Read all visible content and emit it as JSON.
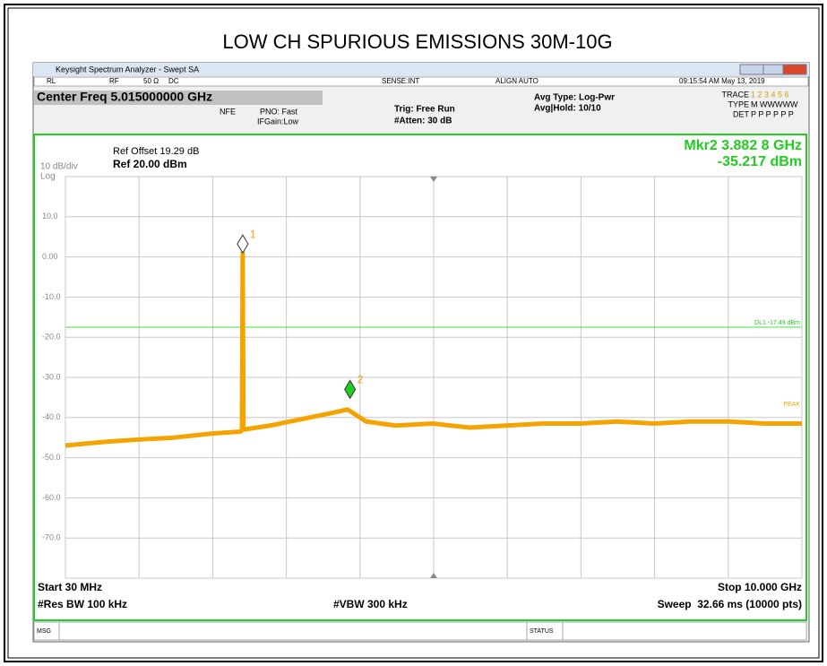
{
  "title": "LOW CH SPURIOUS EMISSIONS 30M-10G",
  "window": {
    "title": "Keysight Spectrum Analyzer - Swept SA"
  },
  "status_row": [
    "RL",
    "RF",
    "50 Ω",
    "DC",
    "SENSE:INT",
    "ALIGN AUTO",
    "09:15:54 AM May 13, 2019"
  ],
  "settings": {
    "center": "Center Freq 5.015000000 GHz",
    "nfe": "NFE",
    "pno": "PNO: Fast",
    "ifgain": "IFGain:Low",
    "trig": "Trig: Free Run",
    "atten": "#Atten: 30 dB",
    "avg_type": "Avg Type: Log-Pwr",
    "avg_hold": "Avg|Hold: 10/10"
  },
  "trace_panel": {
    "trace": "TRACE",
    "trace_nums": "1 2 3 4 5 6",
    "type": "TYPE",
    "type_val": "M WWWWW",
    "det": "DET",
    "det_val": "P P P P P P"
  },
  "ref_offset": "Ref Offset 19.29 dB",
  "scale": "10 dB/div",
  "log": "Log",
  "ref_level": "Ref 20.00 dBm",
  "marker_readout": {
    "freq": "Mkr2 3.882 8 GHz",
    "level": "-35.217 dBm"
  },
  "display_line": {
    "label": "DL1 -17.49 dBm",
    "value": -17.49
  },
  "peak_label": "PEAK",
  "axis": {
    "xlim": [
      0.03,
      10
    ],
    "ylim": [
      -80,
      20
    ],
    "xgrid": [
      0.03,
      1.027,
      2.024,
      3.021,
      4.018,
      5.015,
      6.012,
      7.009,
      8.006,
      9.003,
      10
    ],
    "yticks": [
      {
        "value": 20,
        "label": ""
      },
      {
        "value": 10,
        "label": "10.0"
      },
      {
        "value": 0,
        "label": "0.00"
      },
      {
        "value": -10,
        "label": "-10.0"
      },
      {
        "value": -20,
        "label": "-20.0"
      },
      {
        "value": -30,
        "label": "-30.0"
      },
      {
        "value": -40,
        "label": "-40.0"
      },
      {
        "value": -50,
        "label": "-50.0"
      },
      {
        "value": -60,
        "label": "-60.0"
      },
      {
        "value": -70,
        "label": "-70.0"
      },
      {
        "value": -80,
        "label": ""
      }
    ]
  },
  "trace": {
    "x": [
      0.03,
      0.3,
      0.6,
      1.0,
      1.5,
      2.0,
      2.4,
      2.42,
      2.43,
      2.44,
      2.8,
      3.2,
      3.6,
      3.85,
      4.1,
      4.5,
      5.0,
      5.5,
      6.0,
      6.5,
      7.0,
      7.5,
      8.0,
      8.5,
      9.0,
      9.5,
      10
    ],
    "y": [
      -47,
      -46.5,
      -46,
      -45.5,
      -45,
      -44,
      -43.5,
      -43,
      1,
      -43,
      -42,
      -40.5,
      -39,
      -38,
      -41,
      -42,
      -41.5,
      -42.5,
      -42,
      -41.5,
      -41.5,
      -41,
      -41.5,
      -41,
      -41,
      -41.5,
      -41.5
    ]
  },
  "markers": [
    {
      "label": "1",
      "x": 2.43,
      "y": 1
    },
    {
      "label": "2",
      "x": 3.8828,
      "y": -35.217
    }
  ],
  "footer": {
    "start": "Start 30 MHz",
    "stop": "Stop 10.000 GHz",
    "rbw": "#Res BW 100 kHz",
    "vbw": "#VBW 300 kHz",
    "sweep": "Sweep  32.66 ms (10000 pts)"
  },
  "msg_bar": {
    "msg": "MSG",
    "status": "STATUS"
  }
}
